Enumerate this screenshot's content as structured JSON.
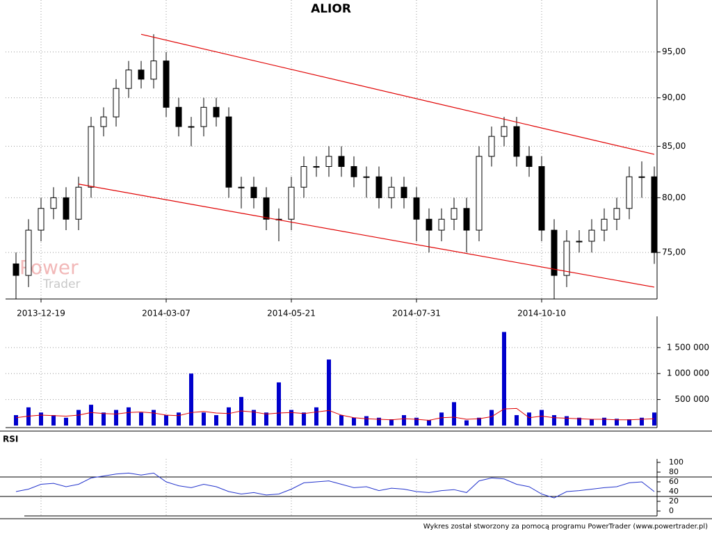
{
  "chart_data": {
    "type": "candlestick",
    "title": "ALIOR",
    "watermark": [
      "Power",
      "Trader"
    ],
    "footer": "Wykres został stworzony za pomocą programu PowerTrader (www.powertrader.pl)",
    "log_scale": true,
    "grid": true,
    "categories": [
      null,
      null,
      "2013-12-19",
      null,
      null,
      null,
      null,
      null,
      null,
      null,
      null,
      null,
      "2014-03-07",
      null,
      null,
      null,
      null,
      null,
      null,
      null,
      null,
      null,
      "2014-05-21",
      null,
      null,
      null,
      null,
      null,
      null,
      null,
      null,
      null,
      "2014-07-31",
      null,
      null,
      null,
      null,
      null,
      null,
      null,
      null,
      null,
      "2014-10-10",
      null,
      null,
      null,
      null,
      null,
      null,
      null,
      null,
      null
    ],
    "open": [
      74,
      73,
      77,
      79,
      80,
      78,
      81,
      87,
      88,
      91,
      93,
      92,
      94,
      89,
      87,
      87,
      89,
      88,
      81,
      81,
      80,
      78,
      78,
      81,
      83,
      83,
      84,
      83,
      82,
      82,
      80,
      81,
      80,
      78,
      77,
      78,
      79,
      77,
      84,
      86,
      87,
      84,
      83,
      77,
      73,
      76,
      76,
      77,
      78,
      79,
      82,
      82
    ],
    "high": [
      75,
      78,
      80,
      81,
      81,
      82,
      88,
      89,
      92,
      94,
      94,
      97,
      95,
      90,
      88,
      90,
      90,
      89,
      82,
      82,
      81,
      79,
      82,
      84,
      84,
      85,
      85,
      84,
      83,
      83,
      82,
      82,
      81,
      79,
      79,
      80,
      80,
      85,
      87,
      88,
      88,
      85,
      84,
      78,
      77,
      77,
      78,
      79,
      80,
      83,
      83.5,
      83
    ],
    "low": [
      71,
      72,
      76,
      78,
      77,
      77,
      80,
      86,
      87,
      90,
      91,
      91,
      88,
      86,
      85,
      86,
      87,
      80,
      79,
      79,
      77,
      76,
      77,
      80,
      82,
      82,
      82,
      81,
      80,
      79,
      79,
      79,
      76,
      75,
      76,
      77,
      75,
      76,
      83,
      85,
      83,
      82,
      76,
      71,
      72,
      75,
      75,
      76,
      77,
      78,
      80,
      74
    ],
    "close": [
      73,
      77,
      79,
      80,
      78,
      81,
      87,
      88,
      91,
      93,
      92,
      94,
      89,
      87,
      87,
      89,
      88,
      81,
      81,
      80,
      78,
      78,
      81,
      83,
      83,
      84,
      83,
      82,
      82,
      80,
      81,
      80,
      78,
      77,
      78,
      79,
      77,
      84,
      86,
      87,
      84,
      83,
      77,
      73,
      76,
      76,
      77,
      78,
      79,
      82,
      82,
      75
    ],
    "ylim": [
      71,
      101
    ],
    "yticks": [
      {
        "value": 75,
        "label": "75,00"
      },
      {
        "value": 80,
        "label": "80,00"
      },
      {
        "value": 85,
        "label": "85,00"
      },
      {
        "value": 90,
        "label": "90,00"
      },
      {
        "value": 95,
        "label": "95,00"
      }
    ],
    "trendlines": [
      {
        "color": "#e00000",
        "x": [
          10,
          51
        ],
        "values": [
          97,
          84.2
        ]
      },
      {
        "color": "#e00000",
        "x": [
          5,
          51
        ],
        "values": [
          81.3,
          72
        ]
      }
    ],
    "volume": {
      "color": "#0000cc",
      "values": [
        200000,
        350000,
        250000,
        200000,
        150000,
        300000,
        400000,
        250000,
        300000,
        350000,
        250000,
        300000,
        200000,
        250000,
        1000000,
        250000,
        200000,
        350000,
        550000,
        300000,
        250000,
        830000,
        300000,
        250000,
        350000,
        1270000,
        200000,
        150000,
        180000,
        150000,
        120000,
        200000,
        150000,
        100000,
        250000,
        450000,
        100000,
        150000,
        300000,
        1800000,
        200000,
        250000,
        300000,
        200000,
        180000,
        150000,
        120000,
        150000,
        130000,
        120000,
        150000,
        250000
      ],
      "average_color": "#e00000",
      "average": [
        150000,
        180000,
        200000,
        190000,
        180000,
        200000,
        250000,
        230000,
        220000,
        250000,
        260000,
        240000,
        200000,
        190000,
        250000,
        270000,
        240000,
        230000,
        280000,
        260000,
        220000,
        240000,
        250000,
        230000,
        260000,
        290000,
        200000,
        150000,
        130000,
        120000,
        110000,
        130000,
        120000,
        100000,
        150000,
        160000,
        120000,
        130000,
        170000,
        320000,
        330000,
        150000,
        180000,
        150000,
        140000,
        130000,
        120000,
        120000,
        110000,
        110000,
        120000,
        130000
      ],
      "ylim": [
        0,
        2100000
      ],
      "yticks": [
        {
          "value": 500000,
          "label": "500 000"
        },
        {
          "value": 1000000,
          "label": "1 000 000"
        },
        {
          "value": 1500000,
          "label": "1 500 000"
        }
      ]
    },
    "rsi": {
      "title": "RSI",
      "color": "#2233cc",
      "values": [
        40,
        45,
        55,
        57,
        50,
        55,
        68,
        72,
        76,
        78,
        74,
        78,
        60,
        52,
        48,
        55,
        50,
        40,
        35,
        38,
        33,
        35,
        45,
        58,
        60,
        62,
        55,
        48,
        50,
        42,
        47,
        45,
        40,
        38,
        42,
        44,
        38,
        62,
        68,
        66,
        55,
        50,
        35,
        27,
        40,
        42,
        45,
        48,
        50,
        58,
        60,
        40
      ],
      "ylim": [
        0,
        100
      ],
      "yticks": [
        0,
        20,
        40,
        60,
        80,
        100
      ],
      "levels": [
        70,
        30
      ]
    }
  }
}
